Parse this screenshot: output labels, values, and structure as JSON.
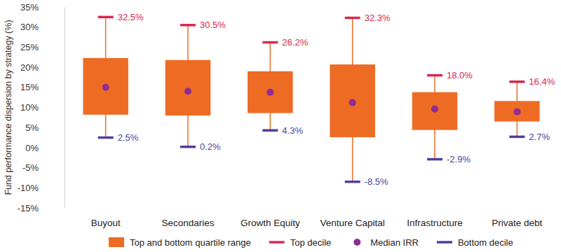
{
  "chart_data": {
    "type": "box",
    "y_label": "Fund performance dispersion by strategy (%)",
    "categories": [
      "Buyout",
      "Secondaries",
      "Growth Equity",
      "Venture Capital",
      "Infrastructure",
      "Private debt"
    ],
    "ylim": [
      -15,
      35
    ],
    "yticks": [
      {
        "value": -15,
        "label": "-15%"
      },
      {
        "value": -10,
        "label": "-10%"
      },
      {
        "value": -5,
        "label": "-5%"
      },
      {
        "value": 0,
        "label": "0%"
      },
      {
        "value": 5,
        "label": "5%"
      },
      {
        "value": 10,
        "label": "10%"
      },
      {
        "value": 15,
        "label": "15%"
      },
      {
        "value": 20,
        "label": "20%"
      },
      {
        "value": 25,
        "label": "25%"
      },
      {
        "value": 30,
        "label": "30%"
      },
      {
        "value": 35,
        "label": "35%"
      }
    ],
    "grid": false,
    "legend": "bottom",
    "series": [
      {
        "name": "Top and bottom quartile range",
        "type": "range",
        "color": "#ee6b24",
        "low": [
          8.2,
          8.0,
          8.6,
          2.6,
          4.4,
          6.5
        ],
        "high": [
          22.3,
          21.8,
          19.0,
          20.7,
          13.8,
          11.6
        ]
      },
      {
        "name": "Top decile",
        "type": "cap",
        "color": "#d6284f",
        "values": [
          32.5,
          30.5,
          26.2,
          32.3,
          18.0,
          16.4
        ],
        "value_labels": [
          "32.5%",
          "30.5%",
          "26.2%",
          "32.3%",
          "18.0%",
          "16.4%"
        ],
        "data_labels": true
      },
      {
        "name": "Median IRR",
        "type": "point",
        "color": "#8e2c92",
        "marker": "circle",
        "values": [
          15.0,
          14.0,
          13.8,
          11.2,
          9.6,
          8.9
        ]
      },
      {
        "name": "Bottom decile",
        "type": "cap",
        "color": "#4b3f9e",
        "values": [
          2.5,
          0.2,
          4.3,
          -8.5,
          -2.9,
          2.7
        ],
        "value_labels": [
          "2.5%",
          "0.2%",
          "4.3%",
          "-8.5%",
          "-2.9%",
          "2.7%"
        ],
        "data_labels": true
      }
    ]
  }
}
